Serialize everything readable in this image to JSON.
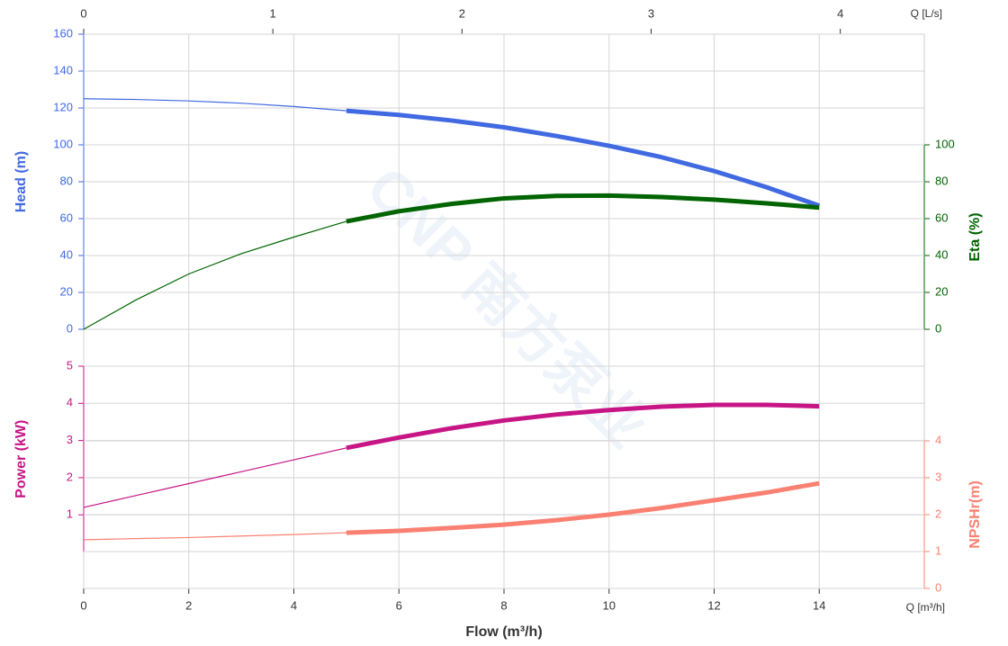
{
  "chart_data": {
    "type": "line",
    "x_label": "Flow (m³/h)",
    "x_unit_label": "Q [m³/h]",
    "x2_label": "Q [L/s]",
    "watermark": "CNP 南方泵业",
    "xlim": [
      0,
      16
    ],
    "xticks": [
      0,
      2,
      4,
      6,
      8,
      10,
      12,
      14
    ],
    "x2lim": [
      0,
      4.444
    ],
    "x2ticks": [
      0,
      1,
      2,
      3,
      4
    ],
    "grid": true,
    "operating_range": [
      5,
      14
    ],
    "x": [
      0,
      1,
      2,
      3,
      4,
      5,
      6,
      7,
      8,
      9,
      10,
      11,
      12,
      13,
      14
    ],
    "series": [
      {
        "name": "Head (m)",
        "color": "#4169e1",
        "side": "left",
        "ylim": [
          0,
          160
        ],
        "yticks": [
          0,
          20,
          40,
          60,
          80,
          100,
          120,
          140,
          160
        ],
        "values": [
          125,
          124.6,
          123.8,
          122.6,
          120.8,
          118.5,
          116.2,
          113.2,
          109.5,
          104.8,
          99.5,
          93.3,
          85.8,
          77,
          67
        ]
      },
      {
        "name": "Eta (%)",
        "color": "#006400",
        "side": "right",
        "ylim": [
          0,
          100
        ],
        "yticks": [
          0,
          20,
          40,
          60,
          80,
          100
        ],
        "values": [
          0,
          16,
          30,
          41,
          50,
          58.5,
          64,
          68,
          71,
          72.3,
          72.5,
          71.7,
          70.3,
          68.3,
          66
        ]
      },
      {
        "name": "Power (kW)",
        "color": "#c71585",
        "side": "left",
        "ylim": [
          0,
          5
        ],
        "yticks": [
          1,
          2,
          3,
          4,
          5
        ],
        "values": [
          1.2,
          1.52,
          1.84,
          2.16,
          2.48,
          2.8,
          3.08,
          3.33,
          3.54,
          3.7,
          3.82,
          3.91,
          3.96,
          3.96,
          3.92
        ]
      },
      {
        "name": "NPSHr(m)",
        "color": "#fa8072",
        "side": "right",
        "ylim": [
          0,
          4
        ],
        "yticks": [
          0,
          1,
          2,
          3,
          4
        ],
        "values": [
          1.32,
          1.35,
          1.38,
          1.42,
          1.46,
          1.51,
          1.56,
          1.64,
          1.73,
          1.85,
          2.0,
          2.18,
          2.39,
          2.6,
          2.85
        ]
      }
    ]
  }
}
